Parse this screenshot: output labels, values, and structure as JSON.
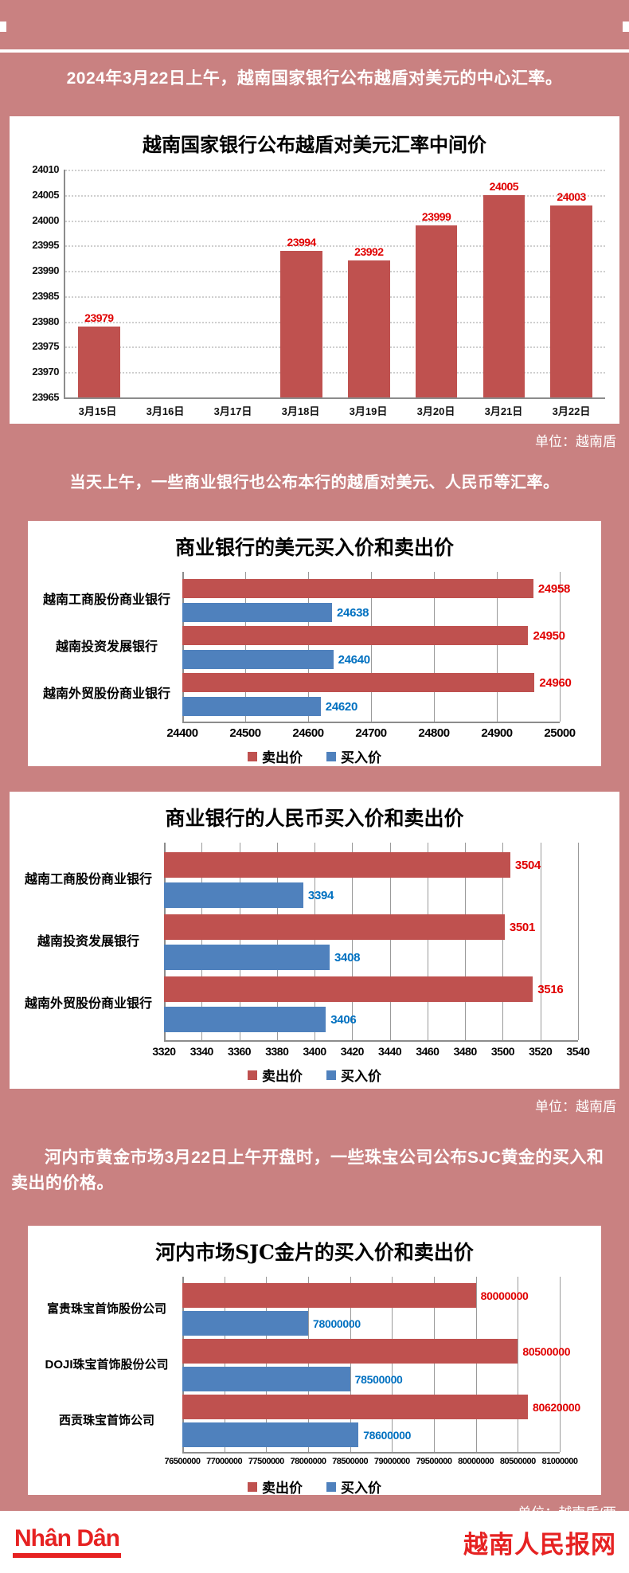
{
  "page": {
    "bg_color": "#c98181",
    "intro1": "2024年3月22日上午，越南国家银行公布越盾对美元的中心汇率。",
    "intro2": "当天上午，一些商业银行也公布本行的越盾对美元、人民币等汇率。",
    "intro3": "河内市黄金市场3月22日上午开盘时，一些珠宝公司公布SJC黄金的买入和卖出的价格。"
  },
  "colors": {
    "sell_bar": "#bf514f",
    "buy_bar": "#4f81bd",
    "sell_label": "#e00000",
    "buy_label": "#0070c0",
    "footer_red": "#e62222"
  },
  "legend": {
    "sell": "卖出价",
    "buy": "买入价"
  },
  "chart_data": [
    {
      "type": "bar",
      "title": "越南国家银行公布越盾对美元汇率中间价",
      "categories": [
        "3月15日",
        "3月16日",
        "3月17日",
        "3月18日",
        "3月19日",
        "3月20日",
        "3月21日",
        "3月22日"
      ],
      "values": [
        23979,
        null,
        null,
        23994,
        23992,
        23999,
        24005,
        24003
      ],
      "yticks": [
        24010,
        24005,
        24000,
        23995,
        23990,
        23985,
        23980,
        23975,
        23970,
        23965
      ],
      "ylim": [
        23965,
        24010
      ],
      "grid": "horizontal-dotted",
      "bar_color": "#bf514f",
      "unit": "单位：越南盾"
    },
    {
      "type": "bar-horizontal",
      "title": "商业银行的美元买入价和卖出价",
      "categories": [
        "越南工商股份商业银行",
        "越南投资发展银行",
        "越南外贸股份商业银行"
      ],
      "series": [
        {
          "name": "卖出价",
          "color": "#bf514f",
          "values": [
            24958,
            24950,
            24960
          ]
        },
        {
          "name": "买入价",
          "color": "#4f81bd",
          "values": [
            24638,
            24640,
            24620
          ]
        }
      ],
      "xticks": [
        24400,
        24500,
        24600,
        24700,
        24800,
        24900,
        25000
      ],
      "xlim": [
        24400,
        25000
      ],
      "legend_position": "bottom"
    },
    {
      "type": "bar-horizontal",
      "title": "商业银行的人民币买入价和卖出价",
      "categories": [
        "越南工商股份商业银行",
        "越南投资发展银行",
        "越南外贸股份商业银行"
      ],
      "series": [
        {
          "name": "卖出价",
          "color": "#bf514f",
          "values": [
            3504,
            3501,
            3516
          ]
        },
        {
          "name": "买入价",
          "color": "#4f81bd",
          "values": [
            3394,
            3408,
            3406
          ]
        }
      ],
      "xticks": [
        3320,
        3340,
        3360,
        3380,
        3400,
        3420,
        3440,
        3460,
        3480,
        3500,
        3520,
        3540
      ],
      "xlim": [
        3320,
        3540
      ],
      "legend_position": "bottom",
      "unit": "单位：越南盾"
    },
    {
      "type": "bar-horizontal",
      "title": "河内市场SJC金片的买入价和卖出价",
      "categories": [
        "富贵珠宝首饰股份公司",
        "DOJI珠宝首饰股份公司",
        "西贡珠宝首饰公司"
      ],
      "series": [
        {
          "name": "卖出价",
          "color": "#bf514f",
          "values": [
            80000000,
            80500000,
            80620000
          ]
        },
        {
          "name": "买入价",
          "color": "#4f81bd",
          "values": [
            78000000,
            78500000,
            78600000
          ]
        }
      ],
      "xticks": [
        76500000,
        77000000,
        77500000,
        78000000,
        78500000,
        79000000,
        79500000,
        80000000,
        80500000,
        81000000
      ],
      "xlim": [
        76500000,
        81000000
      ],
      "legend_position": "bottom",
      "unit": "单位：越南盾/两"
    }
  ],
  "footer": {
    "logo": "Nhân Dân",
    "site_name": "越南人民报网"
  }
}
